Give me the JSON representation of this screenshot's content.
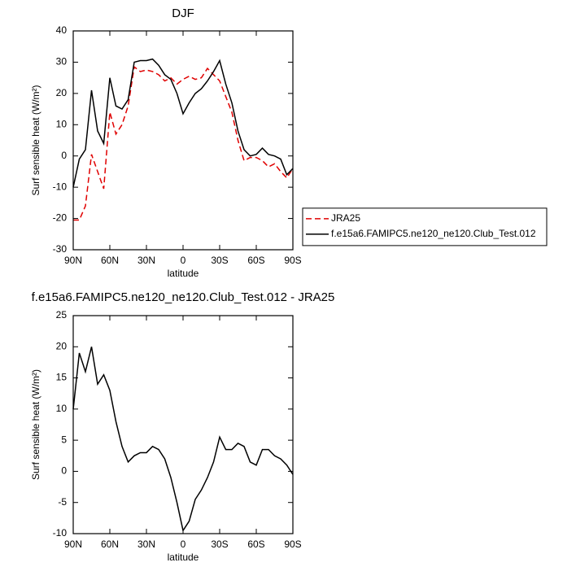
{
  "chart_data": [
    {
      "type": "line",
      "title": "DJF",
      "x_label": "latitude",
      "y_label": "Surf sensible heat (W/m²)",
      "x": [
        90,
        85,
        80,
        75,
        70,
        65,
        60,
        55,
        50,
        45,
        40,
        35,
        30,
        25,
        20,
        15,
        10,
        5,
        0,
        -5,
        -10,
        -15,
        -20,
        -25,
        -30,
        -35,
        -40,
        -45,
        -50,
        -55,
        -60,
        -65,
        -70,
        -75,
        -80,
        -85,
        -90
      ],
      "series": [
        {
          "name": "JRA25",
          "color": "#e00000",
          "line_style": "dashed",
          "values": [
            -20.5,
            -20.5,
            -16,
            0.5,
            -5,
            -10.5,
            14,
            7,
            10,
            16,
            28.5,
            27,
            27.5,
            27,
            26,
            24,
            25,
            23,
            24.5,
            25.5,
            24.5,
            25,
            28,
            26,
            24,
            19,
            14,
            5,
            -1.5,
            -0.5,
            -0.5,
            -1.5,
            -3.5,
            -2.5,
            -5,
            -7,
            -4
          ]
        },
        {
          "name": "f.e15a6.FAMIPC5.ne120_ne120.Club_Test.012",
          "color": "#000000",
          "line_style": "solid",
          "values": [
            -10,
            -1,
            2,
            21,
            8,
            4,
            25,
            16,
            15,
            18,
            30,
            30.5,
            30.5,
            31,
            29,
            26,
            24.5,
            20,
            13.5,
            17,
            20,
            21.5,
            24,
            27,
            30.5,
            23,
            17,
            8,
            2,
            0,
            0.5,
            2.5,
            0.5,
            0,
            -1,
            -6,
            -4
          ]
        }
      ],
      "xlim": [
        90,
        -90
      ],
      "xticks": [
        {
          "value": 90,
          "label": "90N"
        },
        {
          "value": 60,
          "label": "60N"
        },
        {
          "value": 30,
          "label": "30N"
        },
        0,
        {
          "value": -30,
          "label": "30S"
        },
        {
          "value": -60,
          "label": "60S"
        },
        {
          "value": -90,
          "label": "90S"
        }
      ],
      "ylim": [
        -30,
        40
      ],
      "yticks": [
        -30,
        -20,
        -10,
        0,
        10,
        20,
        30,
        40
      ],
      "legend": "right"
    },
    {
      "type": "line",
      "title": "f.e15a6.FAMIPC5.ne120_ne120.Club_Test.012 - JRA25",
      "x_label": "latitude",
      "y_label": "Surf sensible heat (W/m²)",
      "x": [
        90,
        85,
        80,
        75,
        70,
        65,
        60,
        55,
        50,
        45,
        40,
        35,
        30,
        25,
        20,
        15,
        10,
        5,
        0,
        -5,
        -10,
        -15,
        -20,
        -25,
        -30,
        -35,
        -40,
        -45,
        -50,
        -55,
        -60,
        -65,
        -70,
        -75,
        -80,
        -85,
        -90
      ],
      "series": [
        {
          "color": "#000000",
          "line_style": "solid",
          "values": [
            10,
            19,
            16,
            20,
            14,
            15.5,
            13,
            8,
            4,
            1.5,
            2.5,
            3,
            3,
            4,
            3.5,
            2,
            -1,
            -5,
            -9.5,
            -8,
            -4.5,
            -3,
            -1,
            1.5,
            5.5,
            3.5,
            3.5,
            4.5,
            4,
            1.5,
            1,
            3.5,
            3.5,
            2.5,
            2,
            1,
            -0.5
          ]
        }
      ],
      "xlim": [
        90,
        -90
      ],
      "xticks": [
        {
          "value": 90,
          "label": "90N"
        },
        {
          "value": 60,
          "label": "60N"
        },
        {
          "value": 30,
          "label": "30N"
        },
        0,
        {
          "value": -30,
          "label": "30S"
        },
        {
          "value": -60,
          "label": "60S"
        },
        {
          "value": -90,
          "label": "90S"
        }
      ],
      "ylim": [
        -10,
        25
      ],
      "yticks": [
        -10,
        -5,
        0,
        5,
        10,
        15,
        20,
        25
      ]
    }
  ]
}
